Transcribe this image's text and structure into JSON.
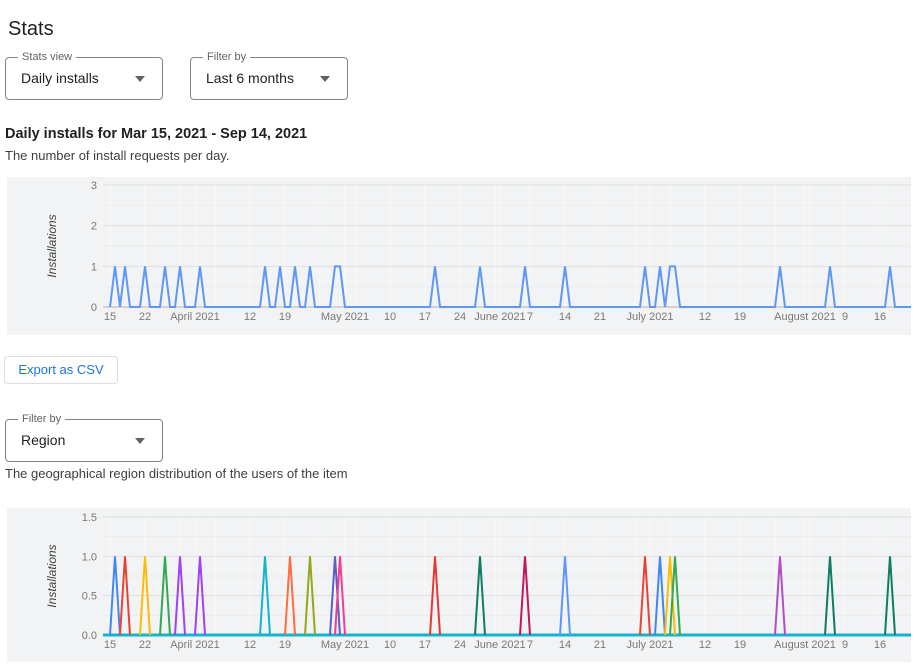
{
  "page": {
    "title": "Stats"
  },
  "controls": {
    "stats_view": {
      "label": "Stats view",
      "value": "Daily installs"
    },
    "filter_by": {
      "label": "Filter by",
      "value": "Last 6 months"
    }
  },
  "daily_installs": {
    "heading": "Daily installs for Mar 15, 2021 - Sep 14, 2021",
    "description": "The number of install requests per day.",
    "export_button": "Export as CSV"
  },
  "region_section": {
    "filter": {
      "label": "Filter by",
      "value": "Region"
    },
    "description": "The geographical region distribution of the users of the item"
  },
  "icons": {
    "dropdown_arrow": "caret-down"
  },
  "colors": {
    "chart_background": "#f1f3f4",
    "axis_text": "#7d7873",
    "primary_line": "#5e97f6",
    "baseline_teal": "#12b5cb",
    "link_blue": "#1a73e8"
  },
  "chart_data": [
    {
      "type": "line",
      "name": "daily-installs",
      "ylabel": "Installations",
      "ylim": [
        0,
        3
      ],
      "yticks": [
        "0",
        "1",
        "2",
        "3"
      ],
      "x_start_date": "Mar 15, 2021",
      "x_end_date": "Sep 14, 2021",
      "x_unit": "day offset from Mar 15, 2021",
      "x_ticks": [
        {
          "label": "15",
          "day": 0
        },
        {
          "label": "22",
          "day": 7
        },
        {
          "label": "April 2021",
          "day": 17
        },
        {
          "label": "12",
          "day": 28
        },
        {
          "label": "19",
          "day": 35
        },
        {
          "label": "May 2021",
          "day": 47
        },
        {
          "label": "10",
          "day": 56
        },
        {
          "label": "17",
          "day": 63
        },
        {
          "label": "24",
          "day": 70
        },
        {
          "label": "June 2021",
          "day": 78
        },
        {
          "label": "7",
          "day": 84
        },
        {
          "label": "14",
          "day": 91
        },
        {
          "label": "21",
          "day": 98
        },
        {
          "label": "July 2021",
          "day": 108
        },
        {
          "label": "12",
          "day": 119
        },
        {
          "label": "19",
          "day": 126
        },
        {
          "label": "August 2021",
          "day": 139
        },
        {
          "label": "9",
          "day": 147
        },
        {
          "label": "16",
          "day": 154
        }
      ],
      "line_color": "#5e97f6",
      "spike_value": 1,
      "spikes": [
        {
          "days": [
            1
          ],
          "date": "Mar 16"
        },
        {
          "days": [
            3
          ],
          "date": "Mar 18"
        },
        {
          "days": [
            7
          ],
          "date": "Mar 22"
        },
        {
          "days": [
            11
          ],
          "date": "Mar 26"
        },
        {
          "days": [
            14
          ],
          "date": "Mar 29"
        },
        {
          "days": [
            18
          ],
          "date": "Apr 2"
        },
        {
          "days": [
            31
          ],
          "date": "Apr 15"
        },
        {
          "days": [
            34
          ],
          "date": "Apr 18"
        },
        {
          "days": [
            37
          ],
          "date": "Apr 21"
        },
        {
          "days": [
            40
          ],
          "date": "Apr 24"
        },
        {
          "days": [
            45,
            46
          ],
          "date": "Apr 29-30"
        },
        {
          "days": [
            65
          ],
          "date": "May 19"
        },
        {
          "days": [
            74
          ],
          "date": "May 28"
        },
        {
          "days": [
            83
          ],
          "date": "Jun 6"
        },
        {
          "days": [
            91
          ],
          "date": "Jun 14"
        },
        {
          "days": [
            107
          ],
          "date": "Jun 30"
        },
        {
          "days": [
            110
          ],
          "date": "Jul 3"
        },
        {
          "days": [
            112,
            113
          ],
          "date": "Jul 5-6"
        },
        {
          "days": [
            134
          ],
          "date": "Jul 27"
        },
        {
          "days": [
            144
          ],
          "date": "Aug 6"
        },
        {
          "days": [
            156
          ],
          "date": "Aug 18"
        }
      ]
    },
    {
      "type": "line",
      "name": "region-distribution",
      "ylabel": "Installations",
      "ylim": [
        0,
        1.5
      ],
      "yticks": [
        "0.0",
        "0.5",
        "1.0",
        "1.5"
      ],
      "x_start_date": "Mar 15, 2021",
      "x_unit": "day offset from Mar 15, 2021",
      "x_ticks": [
        {
          "label": "15",
          "day": 0
        },
        {
          "label": "22",
          "day": 7
        },
        {
          "label": "April 2021",
          "day": 17
        },
        {
          "label": "12",
          "day": 28
        },
        {
          "label": "19",
          "day": 35
        },
        {
          "label": "May 2021",
          "day": 47
        },
        {
          "label": "10",
          "day": 56
        },
        {
          "label": "17",
          "day": 63
        },
        {
          "label": "24",
          "day": 70
        },
        {
          "label": "June 2021",
          "day": 78
        },
        {
          "label": "7",
          "day": 84
        },
        {
          "label": "14",
          "day": 91
        },
        {
          "label": "21",
          "day": 98
        },
        {
          "label": "July 2021",
          "day": 108
        },
        {
          "label": "12",
          "day": 119
        },
        {
          "label": "19",
          "day": 126
        },
        {
          "label": "August 2021",
          "day": 139
        },
        {
          "label": "9",
          "day": 147
        },
        {
          "label": "16",
          "day": 154
        }
      ],
      "baseline_color": "#12b5cb",
      "spike_value": 1,
      "spikes": [
        {
          "day": 1,
          "date": "Mar 16",
          "color": "#4285f4"
        },
        {
          "day": 3,
          "date": "Mar 18",
          "color": "#e94335"
        },
        {
          "day": 7,
          "date": "Mar 22",
          "color": "#fbbc04"
        },
        {
          "day": 11,
          "date": "Mar 26",
          "color": "#34a853"
        },
        {
          "day": 14,
          "date": "Mar 29",
          "color": "#a142f4"
        },
        {
          "day": 18,
          "date": "Apr 2",
          "color": "#a142f4"
        },
        {
          "day": 31,
          "date": "Apr 15",
          "color": "#12b5cb"
        },
        {
          "day": 36,
          "date": "Apr 20",
          "color": "#ff6d3f"
        },
        {
          "day": 40,
          "date": "Apr 24",
          "color": "#9aa41b"
        },
        {
          "day": 45,
          "date": "Apr 29",
          "color": "#5b5fc7"
        },
        {
          "day": 46,
          "date": "Apr 30",
          "color": "#f43d8f"
        },
        {
          "day": 65,
          "date": "May 19",
          "color": "#e53935"
        },
        {
          "day": 74,
          "date": "May 28",
          "color": "#0d7d64"
        },
        {
          "day": 83,
          "date": "Jun 6",
          "color": "#c2185b"
        },
        {
          "day": 91,
          "date": "Jun 14",
          "color": "#5e97f6"
        },
        {
          "day": 107,
          "date": "Jun 30",
          "color": "#e94335"
        },
        {
          "day": 110,
          "date": "Jul 3",
          "color": "#4285f4"
        },
        {
          "day": 112,
          "date": "Jul 5",
          "color": "#fbbc04"
        },
        {
          "day": 113,
          "date": "Jul 6",
          "color": "#34a853"
        },
        {
          "day": 134,
          "date": "Jul 27",
          "color": "#b14fc8"
        },
        {
          "day": 144,
          "date": "Aug 6",
          "color": "#0d7d64"
        },
        {
          "day": 156,
          "date": "Aug 18",
          "color": "#0d7d64"
        }
      ]
    }
  ]
}
